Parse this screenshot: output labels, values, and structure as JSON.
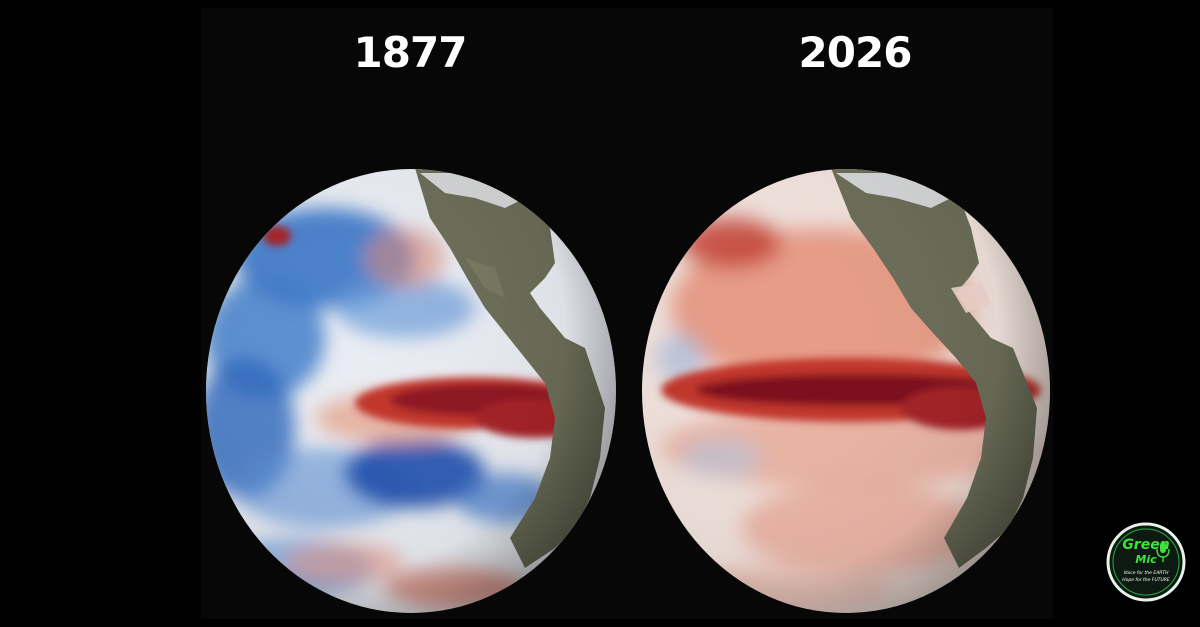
{
  "labels": {
    "left_year": "1877",
    "right_year": "2026"
  },
  "logo": {
    "word1": "Green",
    "word2": "Mic",
    "tagline1": "Voice for the EARTH",
    "tagline2": "Hope for the FUTURE",
    "icon": "microphone-icon"
  },
  "colors": {
    "background": "#000000",
    "warm_anomaly": "#b3202a",
    "cool_anomaly": "#2f6fc4",
    "land": "#6b6d58",
    "logo_green": "#3fe23c"
  }
}
